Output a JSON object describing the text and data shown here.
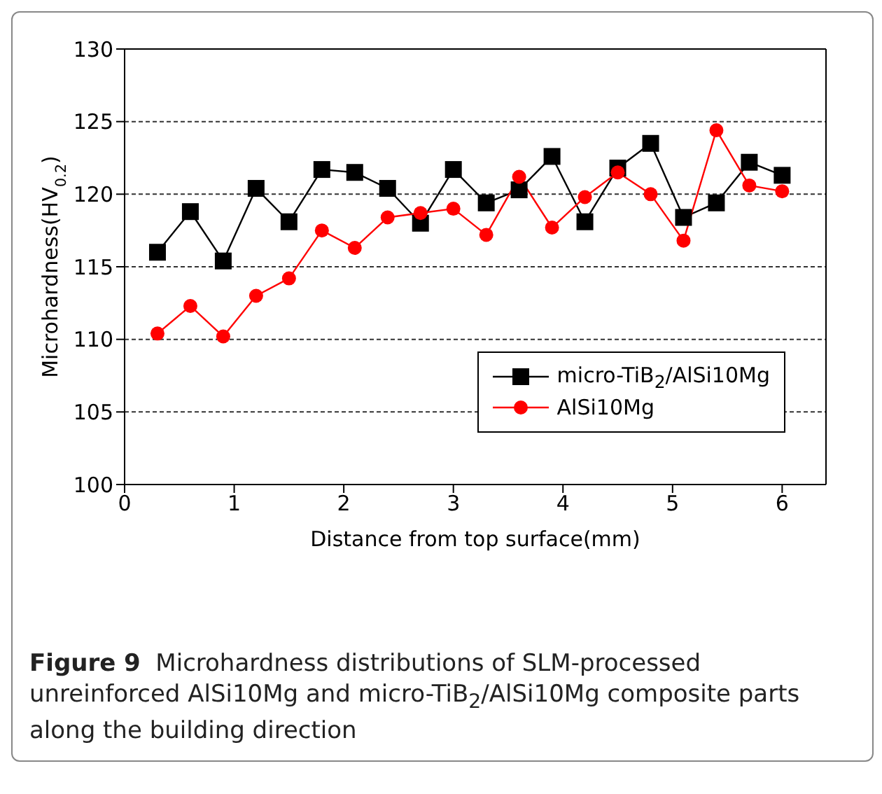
{
  "chart_data": {
    "type": "line",
    "xlabel": "Distance from top surface(mm)",
    "ylabel": "Microhardness(HV$_{0.2}$)",
    "x": [
      0.3,
      0.6,
      0.9,
      1.2,
      1.5,
      1.8,
      2.1,
      2.4,
      2.7,
      3.0,
      3.3,
      3.6,
      3.9,
      4.2,
      4.5,
      4.8,
      5.1,
      5.4,
      5.7,
      6.0
    ],
    "series": [
      {
        "name": "micro-TiB$_{2}$/AlSi10Mg",
        "color": "#000000",
        "marker": "square",
        "values": [
          116.0,
          118.8,
          115.4,
          120.4,
          118.1,
          121.7,
          121.5,
          120.4,
          118.0,
          121.7,
          119.4,
          120.3,
          122.6,
          118.1,
          121.8,
          123.5,
          118.4,
          119.4,
          122.2,
          121.3
        ]
      },
      {
        "name": "AlSi10Mg",
        "color": "#ff0000",
        "marker": "circle",
        "values": [
          110.4,
          112.3,
          110.2,
          113.0,
          114.2,
          117.5,
          116.3,
          118.4,
          118.7,
          119.0,
          117.2,
          121.2,
          117.7,
          119.8,
          121.5,
          120.0,
          116.8,
          124.4,
          120.6,
          120.2
        ]
      }
    ],
    "xlim": [
      0,
      6.4
    ],
    "xticks": [
      0,
      1,
      2,
      3,
      4,
      5,
      6
    ],
    "ylim": [
      100,
      130
    ],
    "yticks": [
      100,
      105,
      110,
      115,
      120,
      125,
      130
    ],
    "grid": "y",
    "legend": "bottom right",
    "line_style": "solid",
    "annotations": [
      "Figure 9  Microhardness distributions of SLM-processed unreinforced AlSi10Mg and micro-TiB$_{2}$/AlSi10Mg composite parts along the building direction"
    ]
  }
}
